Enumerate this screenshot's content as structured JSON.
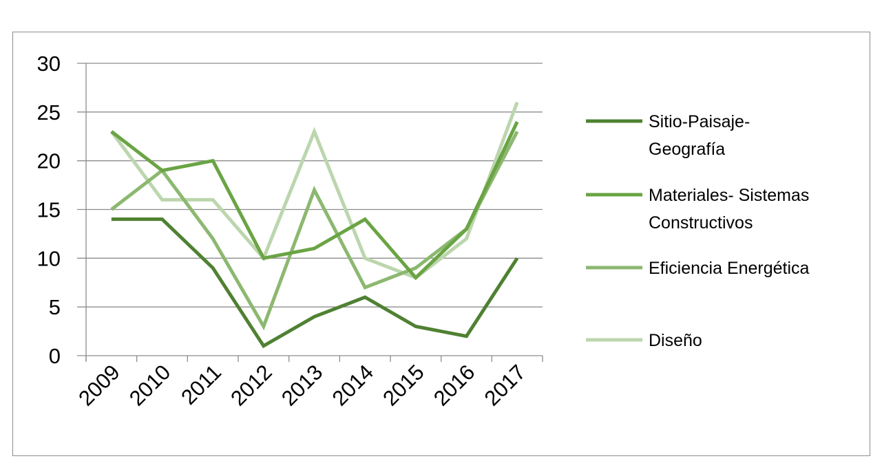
{
  "chart_data": {
    "type": "line",
    "title": "",
    "xlabel": "",
    "ylabel": "",
    "categories": [
      "2009",
      "2010",
      "2011",
      "2012",
      "2013",
      "2014",
      "2015",
      "2016",
      "2017"
    ],
    "y_ticks": [
      "0",
      "5",
      "10",
      "15",
      "20",
      "25",
      "30"
    ],
    "ylim": [
      0,
      30
    ],
    "grid": true,
    "legend_position": "right",
    "series": [
      {
        "name": "Sitio-Paisaje-Geografía",
        "legend_lines": [
          "Sitio-Paisaje-",
          "Geografía"
        ],
        "color": "#4f8132",
        "values": [
          14,
          14,
          9,
          1,
          4,
          6,
          3,
          2,
          10
        ]
      },
      {
        "name": "Materiales- Sistemas Constructivos",
        "legend_lines": [
          "Materiales- Sistemas",
          "Constructivos"
        ],
        "color": "#6aa444",
        "values": [
          23,
          19,
          20,
          10,
          11,
          14,
          8,
          13,
          24
        ]
      },
      {
        "name": "Eficiencia Energética",
        "legend_lines": [
          "Eficiencia Energética"
        ],
        "color": "#8cb870",
        "values": [
          15,
          19,
          12,
          3,
          17,
          7,
          9,
          13,
          23
        ]
      },
      {
        "name": "Diseño",
        "legend_lines": [
          "Diseño"
        ],
        "color": "#bcd6ad",
        "values": [
          23,
          16,
          16,
          10,
          23,
          10,
          8,
          12,
          26
        ]
      }
    ]
  }
}
